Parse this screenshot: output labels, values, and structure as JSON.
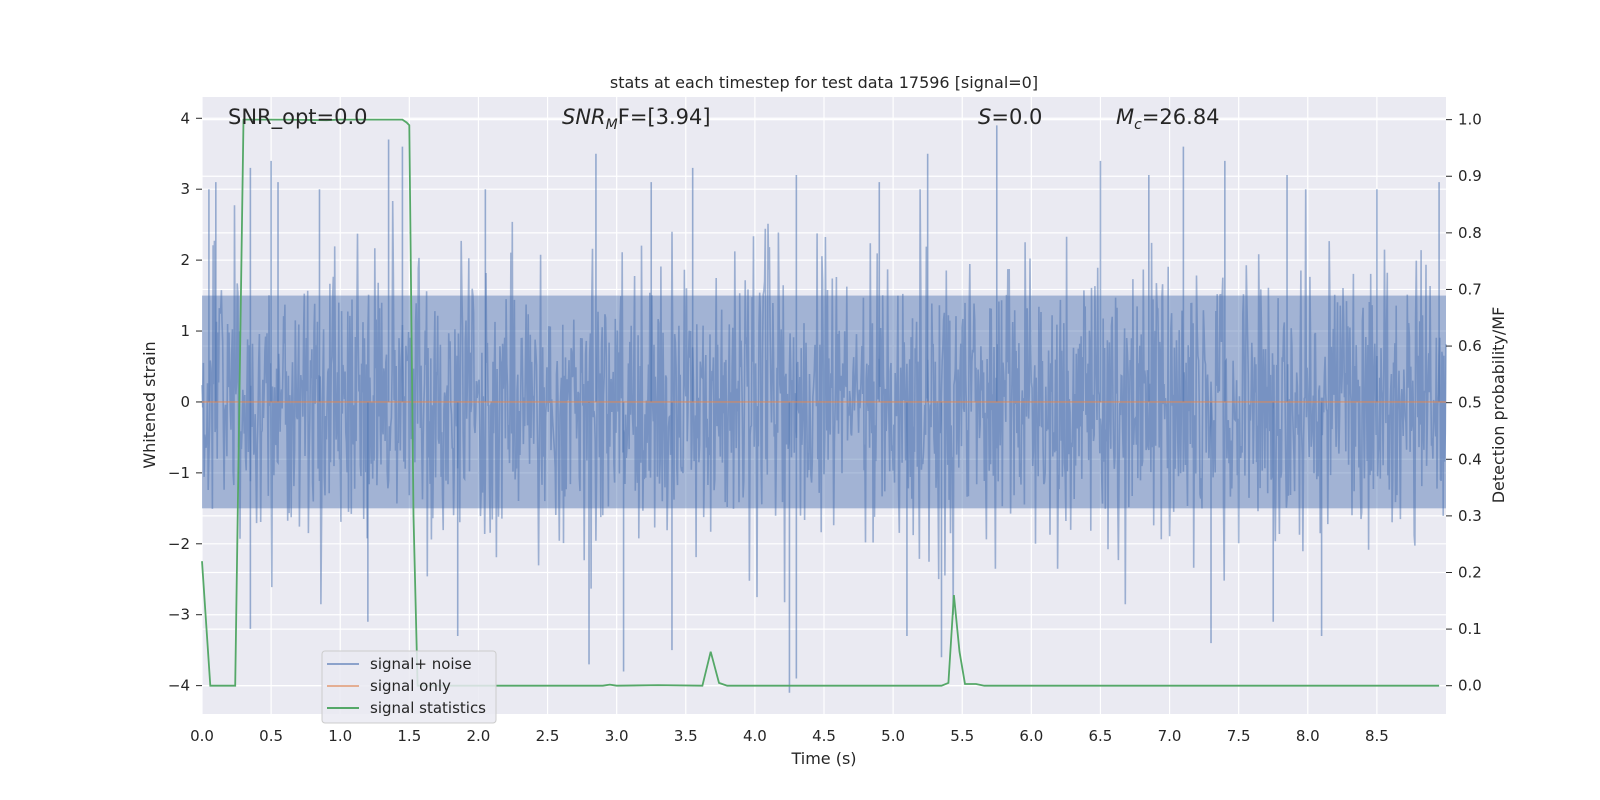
{
  "chart_data": {
    "type": "line",
    "title": "stats at each timestep for test data 17596 [signal=0]",
    "xlabel": "Time (s)",
    "ylabel_left": "Whitened strain",
    "ylabel_right": "Detection probability/MF",
    "xlim": [
      0.0,
      9.0
    ],
    "ylim_left": [
      -4.4,
      4.3
    ],
    "ylim_right": [
      -0.05,
      1.04
    ],
    "x_ticks": [
      "0.0",
      "0.5",
      "1.0",
      "1.5",
      "2.0",
      "2.5",
      "3.0",
      "3.5",
      "4.0",
      "4.5",
      "5.0",
      "5.5",
      "6.0",
      "6.5",
      "7.0",
      "7.5",
      "8.0",
      "8.5"
    ],
    "y_ticks_left": [
      "4",
      "3",
      "2",
      "1",
      "0",
      "−1",
      "−2",
      "−3",
      "−4"
    ],
    "y_ticks_right": [
      "1.0",
      "0.9",
      "0.8",
      "0.7",
      "0.6",
      "0.5",
      "0.4",
      "0.3",
      "0.2",
      "0.1",
      "0.0"
    ],
    "grid": true,
    "legend_position": "lower-left",
    "annotations": {
      "snr_opt": "SNR_opt=0.0",
      "snr_mf_main": "SNR",
      "snr_mf_sub": "M",
      "snr_mf_rest": "F=[3.94]",
      "s_main": "S",
      "s_rest": "=0.0",
      "mc_main": "M",
      "mc_sub": "c",
      "mc_rest": "=26.84"
    },
    "series": [
      {
        "name": "signal+ noise",
        "axis": "left",
        "color": "#4c72b0",
        "description_envelope": "whitened noise, roughly between -2.5 and 3 with spikes to about ±4",
        "spikes_up": [
          [
            0.05,
            3.0
          ],
          [
            0.1,
            3.1
          ],
          [
            0.35,
            3.3
          ],
          [
            0.5,
            3.4
          ],
          [
            0.55,
            3.1
          ],
          [
            0.85,
            3.0
          ],
          [
            1.35,
            3.7
          ],
          [
            1.45,
            3.6
          ],
          [
            2.05,
            3.0
          ],
          [
            2.85,
            3.5
          ],
          [
            3.25,
            3.1
          ],
          [
            3.55,
            3.3
          ],
          [
            4.3,
            3.2
          ],
          [
            4.9,
            3.1
          ],
          [
            5.25,
            3.5
          ],
          [
            5.75,
            3.9
          ],
          [
            6.5,
            3.4
          ],
          [
            6.85,
            3.2
          ],
          [
            7.1,
            3.6
          ],
          [
            7.4,
            3.4
          ],
          [
            7.85,
            3.2
          ],
          [
            8.5,
            3.0
          ],
          [
            8.95,
            3.1
          ]
        ],
        "spikes_down": [
          [
            0.35,
            -3.2
          ],
          [
            1.2,
            -3.1
          ],
          [
            1.85,
            -3.3
          ],
          [
            2.8,
            -3.7
          ],
          [
            3.05,
            -3.8
          ],
          [
            3.4,
            -3.5
          ],
          [
            4.25,
            -4.1
          ],
          [
            4.3,
            -3.9
          ],
          [
            5.1,
            -3.3
          ],
          [
            5.35,
            -3.6
          ],
          [
            7.3,
            -3.4
          ],
          [
            7.75,
            -3.1
          ],
          [
            8.1,
            -3.3
          ]
        ]
      },
      {
        "name": "signal only",
        "axis": "left",
        "color": "#dd8452",
        "values_constant": 0.0
      },
      {
        "name": "signal statistics",
        "axis": "right",
        "color": "#55a868",
        "x": [
          0.0,
          0.06,
          0.12,
          0.2,
          0.24,
          0.3,
          0.35,
          0.6,
          0.9,
          1.0,
          1.3,
          1.45,
          1.48,
          1.5,
          1.53,
          1.56,
          1.62,
          2.0,
          2.5,
          2.9,
          2.95,
          3.0,
          3.3,
          3.62,
          3.68,
          3.74,
          3.8,
          4.2,
          5.0,
          5.35,
          5.4,
          5.44,
          5.48,
          5.52,
          5.6,
          5.66,
          6.0,
          7.0,
          8.0,
          8.95
        ],
        "y": [
          0.22,
          0.0,
          0.0,
          0.0,
          0.0,
          1.0,
          1.0,
          1.0,
          0.999,
          1.0,
          1.0,
          1.0,
          0.995,
          0.99,
          0.3,
          0.0,
          0.0,
          0.0,
          0.0,
          0.0,
          0.002,
          0.0,
          0.001,
          0.0,
          0.06,
          0.005,
          0.0,
          0.0,
          0.0,
          0.0,
          0.005,
          0.16,
          0.06,
          0.003,
          0.003,
          0.0,
          0.0,
          0.0,
          0.0,
          0.0
        ]
      }
    ]
  }
}
